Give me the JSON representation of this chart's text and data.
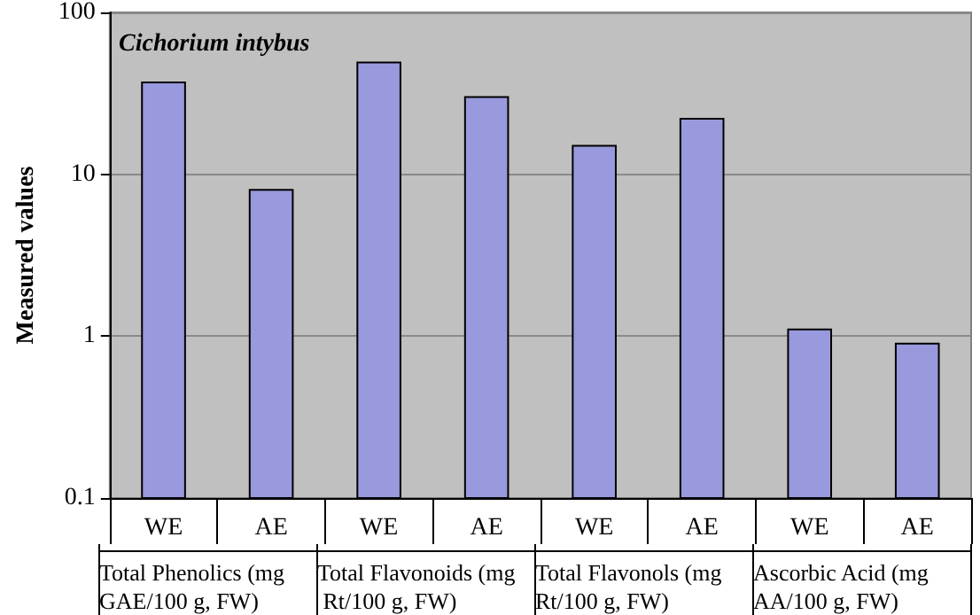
{
  "chart_data": {
    "type": "bar",
    "title": "Cichorium intybus",
    "ylabel": "Measured values",
    "categories": [
      "WE",
      "AE",
      "WE",
      "AE",
      "WE",
      "AE",
      "WE",
      "AE"
    ],
    "values": [
      37,
      8,
      49,
      30,
      15,
      22,
      1.1,
      0.9
    ],
    "color": "#9999dd",
    "annotations": [
      "Total Phenolics (mg GAE/100 g, FW)",
      "Total Flavonoids (mg Rt/100 g, FW)",
      "Total Flavonols (mg Rt/100 g, FW)",
      "Ascorbic Acid (mg AA/100 g, FW)"
    ],
    "log": true,
    "ylim": [
      0.1,
      100
    ],
    "yticks": [
      0.1,
      1,
      10,
      100
    ],
    "grid": true
  }
}
